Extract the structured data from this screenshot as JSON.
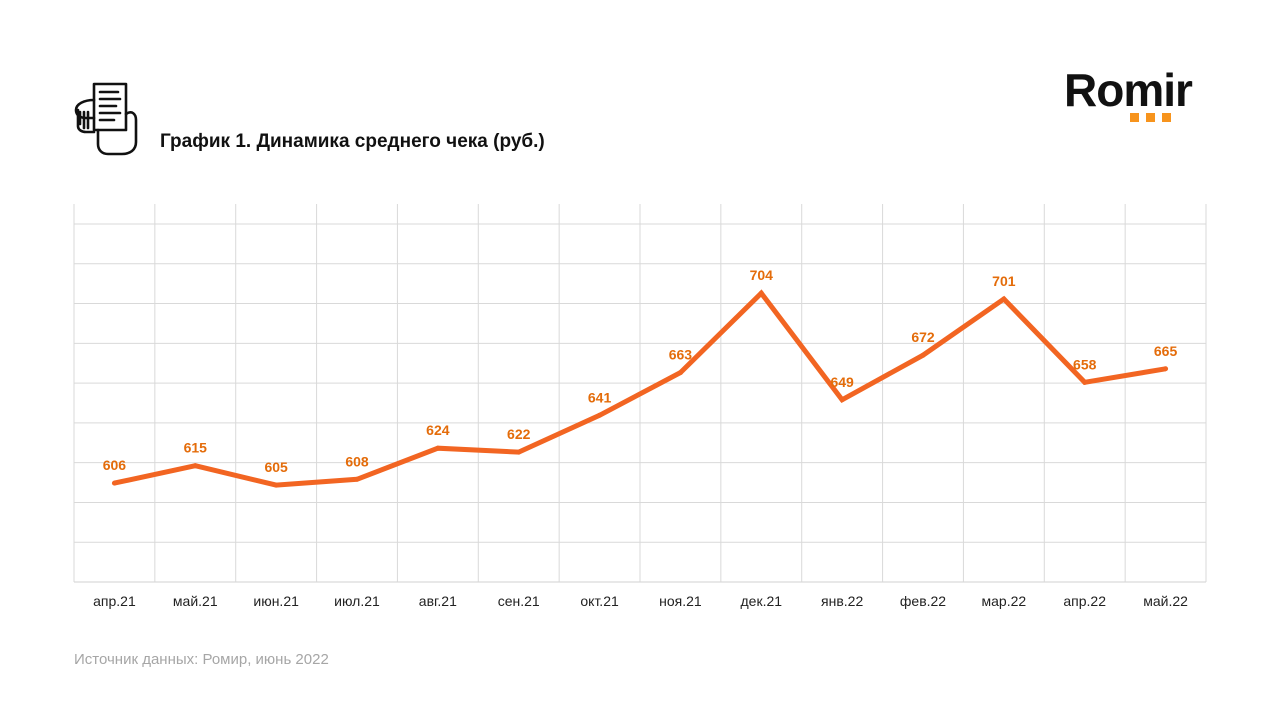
{
  "header": {
    "title": "График 1. Динамика среднего чека (руб.)",
    "icon": "receipt-hand-icon"
  },
  "logo": {
    "text": "Romir",
    "accent_color": "#f7941d"
  },
  "footer": {
    "source": "Источник данных: Ромир, июнь 2022"
  },
  "chart_data": {
    "type": "line",
    "title": "График 1. Динамика среднего чека (руб.)",
    "categories": [
      "апр.21",
      "май.21",
      "июн.21",
      "июл.21",
      "авг.21",
      "сен.21",
      "окт.21",
      "ноя.21",
      "дек.21",
      "янв.22",
      "фев.22",
      "мар.22",
      "апр.22",
      "май.22"
    ],
    "series": [
      {
        "values": [
          606,
          615,
          605,
          608,
          624,
          622,
          641,
          663,
          704,
          649,
          672,
          701,
          658,
          665
        ],
        "color": "#f26522"
      }
    ],
    "ylim": [
      555,
      750
    ],
    "grid": true,
    "data_labels": true,
    "colors": {
      "grid": "#d9d9d9",
      "label": "#e46c0a",
      "axis_text": "#222222"
    }
  }
}
